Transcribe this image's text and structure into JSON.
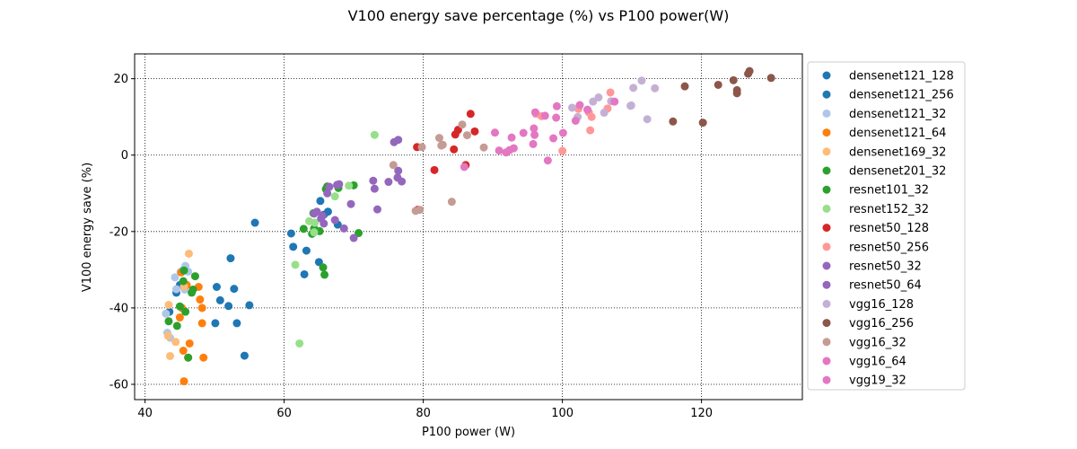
{
  "chart_data": {
    "type": "scatter",
    "title": "V100 energy save percentage (%) vs P100 power(W)",
    "xlabel": "P100 power (W)",
    "ylabel": "V100 energy save (%)",
    "xlim": [
      38.5,
      134.5
    ],
    "ylim": [
      -64,
      26.5
    ],
    "xticks": [
      40,
      60,
      80,
      100,
      120
    ],
    "yticks": [
      -60,
      -40,
      -20,
      0,
      20
    ],
    "grid": true,
    "legend_position": "right-outside",
    "series": [
      {
        "name": "densenet121_128",
        "color": "#1f77b4",
        "points": [
          [
            43.5,
            -41
          ],
          [
            44.5,
            -36
          ],
          [
            45,
            -34
          ]
        ]
      },
      {
        "name": "densenet121_256",
        "color": "#1f77b4",
        "points": [
          [
            50.3,
            -34.5
          ],
          [
            50.8,
            -38
          ],
          [
            52,
            -39.5
          ],
          [
            52.3,
            -27
          ],
          [
            52.8,
            -35
          ],
          [
            53.2,
            -44
          ],
          [
            54.3,
            -52.5
          ],
          [
            55,
            -39.3
          ],
          [
            55.8,
            -17.7
          ],
          [
            50.1,
            -44
          ],
          [
            61,
            -20.5
          ],
          [
            61.3,
            -24
          ],
          [
            62.9,
            -31.2
          ],
          [
            63.2,
            -25
          ],
          [
            65,
            -28
          ],
          [
            65.2,
            -12
          ],
          [
            65.7,
            -15.6
          ],
          [
            66.3,
            -14.8
          ],
          [
            67.7,
            -18.2
          ]
        ]
      },
      {
        "name": "densenet121_32",
        "color": "#aec7e8",
        "points": [
          [
            43,
            -41.5
          ],
          [
            43.2,
            -46.5
          ],
          [
            43.6,
            -47.8
          ],
          [
            44.3,
            -32
          ],
          [
            44.5,
            -35.1
          ],
          [
            45.1,
            -30.6
          ],
          [
            45.5,
            -30
          ],
          [
            45.8,
            -29
          ],
          [
            46.2,
            -30.5
          ],
          [
            45.7,
            -35.2
          ]
        ]
      },
      {
        "name": "densenet121_64",
        "color": "#ff7f0e",
        "points": [
          [
            45.6,
            -59.2
          ],
          [
            45.5,
            -51.2
          ],
          [
            46.2,
            -53
          ],
          [
            46.4,
            -49.3
          ],
          [
            48.4,
            -53
          ],
          [
            48.2,
            -40
          ],
          [
            47.9,
            -37.8
          ],
          [
            48.2,
            -44
          ],
          [
            45,
            -42.5
          ],
          [
            45.3,
            -40
          ],
          [
            46,
            -34
          ],
          [
            47.7,
            -34.5
          ],
          [
            45.2,
            -30.7
          ]
        ]
      },
      {
        "name": "densenet169_32",
        "color": "#ffbb78",
        "points": [
          [
            43.3,
            -47.3
          ],
          [
            43.4,
            -39.2
          ],
          [
            43.6,
            -52.6
          ],
          [
            44.4,
            -48.9
          ],
          [
            46.3,
            -25.8
          ],
          [
            45.6,
            -34.4
          ]
        ]
      },
      {
        "name": "densenet201_32",
        "color": "#2ca02c",
        "points": [
          [
            43.4,
            -43.5
          ],
          [
            44.6,
            -44.7
          ],
          [
            45,
            -39.6
          ],
          [
            45.5,
            -33
          ],
          [
            45.6,
            -30.2
          ],
          [
            45.8,
            -41
          ],
          [
            46.7,
            -36
          ],
          [
            46.9,
            -35.2
          ],
          [
            47.2,
            -31.7
          ],
          [
            46.2,
            -53
          ]
        ]
      },
      {
        "name": "resnet101_32",
        "color": "#2ca02c",
        "points": [
          [
            62.8,
            -19.3
          ],
          [
            64,
            -20.6
          ],
          [
            64.3,
            -19.2
          ],
          [
            65.1,
            -19.9
          ],
          [
            65.6,
            -29.4
          ],
          [
            65.8,
            -31.3
          ],
          [
            66,
            -8.9
          ],
          [
            66.2,
            -8.2
          ],
          [
            67.8,
            -8.6
          ],
          [
            70,
            -7.9
          ],
          [
            70.7,
            -20.4
          ],
          [
            64.2,
            -15.2
          ]
        ]
      },
      {
        "name": "resnet152_32",
        "color": "#98df8a",
        "points": [
          [
            61.6,
            -28.7
          ],
          [
            62.2,
            -49.3
          ],
          [
            63.6,
            -17.3
          ],
          [
            64.4,
            -17.7
          ],
          [
            67.3,
            -10.8
          ],
          [
            69.3,
            -8
          ],
          [
            73,
            5.3
          ],
          [
            64.3,
            -20.2
          ]
        ]
      },
      {
        "name": "resnet50_128",
        "color": "#d62728",
        "points": [
          [
            79.1,
            2.1
          ],
          [
            79.2,
            -14.3
          ],
          [
            81.6,
            -3.9
          ],
          [
            84.4,
            1.5
          ],
          [
            84.6,
            5.4
          ],
          [
            85,
            6.6
          ],
          [
            86.1,
            -2.6
          ],
          [
            86.8,
            10.8
          ],
          [
            87.4,
            6.2
          ]
        ]
      },
      {
        "name": "resnet50_256",
        "color": "#ff9896",
        "points": [
          [
            96.2,
            10.8
          ],
          [
            97,
            10.2
          ],
          [
            100,
            1.1
          ],
          [
            102.3,
            12.1
          ],
          [
            103.8,
            11.2
          ],
          [
            104,
            6.5
          ],
          [
            104.2,
            10
          ],
          [
            106.9,
            16.4
          ],
          [
            106.5,
            12.2
          ]
        ]
      },
      {
        "name": "resnet50_32",
        "color": "#9467bd",
        "points": [
          [
            64.3,
            -15.3
          ],
          [
            64.7,
            -14.8
          ],
          [
            65.3,
            -16.6
          ],
          [
            65.5,
            -15.9
          ],
          [
            66.2,
            -10
          ],
          [
            66.5,
            -8.3
          ],
          [
            67.3,
            -17
          ],
          [
            67.6,
            -7.8
          ],
          [
            68.6,
            -19.2
          ],
          [
            69.6,
            -12.8
          ],
          [
            70,
            -21.7
          ],
          [
            72.8,
            -6.7
          ],
          [
            73,
            -8.8
          ],
          [
            73.4,
            -14.2
          ],
          [
            75,
            -7
          ],
          [
            76.3,
            -5.9
          ],
          [
            76.4,
            -4.1
          ],
          [
            76.9,
            -6.9
          ]
        ]
      },
      {
        "name": "resnet50_64",
        "color": "#9467bd",
        "points": [
          [
            65.7,
            -17.9
          ],
          [
            67.9,
            -7.6
          ],
          [
            75.8,
            3.4
          ],
          [
            76.4,
            4
          ]
        ]
      },
      {
        "name": "vgg16_128",
        "color": "#c5b0d5",
        "points": [
          [
            101.4,
            12.4
          ],
          [
            102.2,
            10
          ],
          [
            104.4,
            14
          ],
          [
            105.2,
            15.1
          ],
          [
            106,
            11.1
          ],
          [
            107,
            14.1
          ],
          [
            109.9,
            13
          ],
          [
            110.2,
            17.6
          ],
          [
            111.4,
            19.5
          ],
          [
            112.2,
            9.4
          ],
          [
            113.3,
            17.5
          ],
          [
            109.8,
            12.9
          ]
        ]
      },
      {
        "name": "vgg16_256",
        "color": "#8c564b",
        "points": [
          [
            115.9,
            8.8
          ],
          [
            117.6,
            18
          ],
          [
            120.2,
            8.5
          ],
          [
            122.4,
            18.4
          ],
          [
            124.6,
            19.6
          ],
          [
            125.1,
            16.2
          ],
          [
            125.1,
            17
          ],
          [
            126.7,
            21.3
          ],
          [
            126.9,
            22
          ],
          [
            130,
            20.2
          ]
        ]
      },
      {
        "name": "vgg16_32",
        "color": "#c49c94",
        "points": [
          [
            75.7,
            -2.6
          ],
          [
            78.9,
            -14.6
          ],
          [
            79.5,
            -14.3
          ],
          [
            79.8,
            2.1
          ],
          [
            82.3,
            4.5
          ],
          [
            82.6,
            2.5
          ],
          [
            82.8,
            2.7
          ],
          [
            84.1,
            -12.2
          ],
          [
            85.6,
            8
          ],
          [
            86.3,
            5.2
          ],
          [
            88.7,
            2
          ]
        ]
      },
      {
        "name": "vgg16_64",
        "color": "#e377c2",
        "points": [
          [
            85.9,
            -3.1
          ],
          [
            90.3,
            5.9
          ],
          [
            90.9,
            1.2
          ],
          [
            91.9,
            0.7
          ],
          [
            92.4,
            1.3
          ],
          [
            92.7,
            4.6
          ],
          [
            94.4,
            5.8
          ],
          [
            95.8,
            2.9
          ],
          [
            96,
            5.3
          ],
          [
            97.5,
            10.3
          ],
          [
            98.7,
            4.4
          ],
          [
            99.1,
            9.8
          ],
          [
            100.1,
            5.8
          ],
          [
            101.9,
            9
          ],
          [
            103.6,
            11.9
          ],
          [
            95.9,
            7
          ]
        ]
      },
      {
        "name": "vgg19_32",
        "color": "#e377c2",
        "points": [
          [
            93,
            1.8
          ],
          [
            96.1,
            11.2
          ],
          [
            97.9,
            -1.4
          ],
          [
            99.2,
            12.8
          ],
          [
            102.5,
            13.1
          ],
          [
            107.5,
            14
          ]
        ]
      }
    ]
  }
}
